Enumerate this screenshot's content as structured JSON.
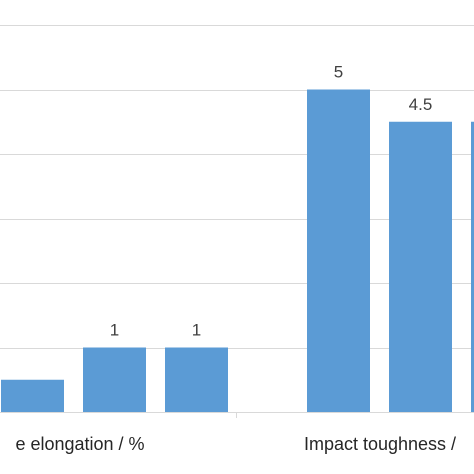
{
  "chart_data": {
    "type": "bar",
    "categories": [
      "... elongation / %",
      "Impact toughness /..."
    ],
    "category_labels_visible": [
      "e elongation / %",
      "Impact toughness /"
    ],
    "series": [
      {
        "values": [
          0.5,
          5
        ]
      },
      {
        "values": [
          1,
          4.5
        ]
      },
      {
        "values": [
          1,
          4.5
        ]
      }
    ],
    "data_labels": [
      [
        "",
        "1",
        "1"
      ],
      [
        "5",
        "4.5",
        ""
      ]
    ],
    "ylim": [
      0,
      6.4
    ],
    "grid": true,
    "legend": "none",
    "colors": {
      "bar": "#5b9bd5",
      "grid": "#d9d9d9"
    }
  }
}
